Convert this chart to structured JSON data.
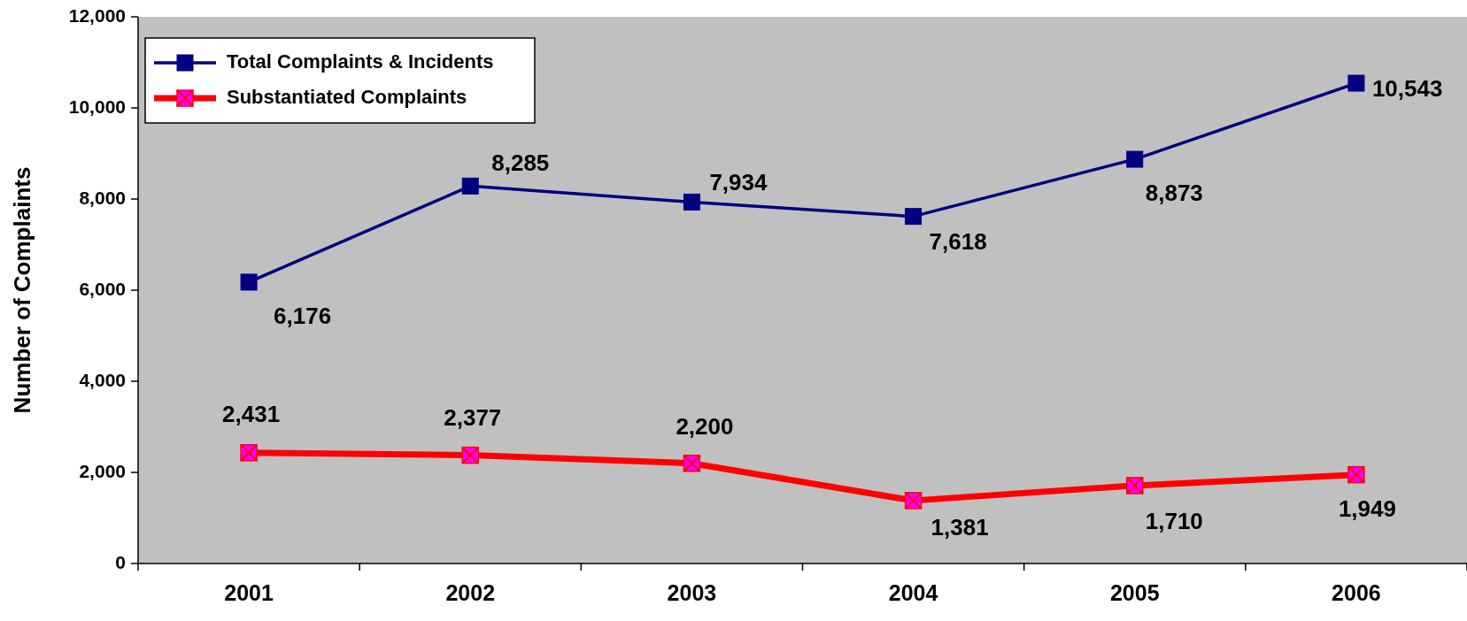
{
  "chart_data": {
    "type": "line",
    "ylabel": "Number of Complaints",
    "categories": [
      "2001",
      "2002",
      "2003",
      "2004",
      "2005",
      "2006"
    ],
    "series": [
      {
        "name": "Total Complaints & Incidents",
        "color": "#000080",
        "marker": "square",
        "values": [
          6176,
          8285,
          7934,
          7618,
          8873,
          10543
        ],
        "value_labels": [
          "6,176",
          "8,285",
          "7,934",
          "7,618",
          "8,873",
          "10,543"
        ]
      },
      {
        "name": "Substantiated Complaints",
        "color": "#ff0000",
        "marker": "square",
        "values": [
          2431,
          2377,
          2200,
          1381,
          1710,
          1949
        ],
        "value_labels": [
          "2,431",
          "2,377",
          "2,200",
          "1,381",
          "1,710",
          "1,949"
        ]
      }
    ],
    "ylim": [
      0,
      12000
    ],
    "yticks": [
      {
        "value": 0,
        "label": "0"
      },
      {
        "value": 2000,
        "label": "2,000"
      },
      {
        "value": 4000,
        "label": "4,000"
      },
      {
        "value": 6000,
        "label": "6,000"
      },
      {
        "value": 8000,
        "label": "8,000"
      },
      {
        "value": 10000,
        "label": "10,000"
      },
      {
        "value": 12000,
        "label": "12,000"
      }
    ],
    "grid": false,
    "legend": "top left"
  }
}
